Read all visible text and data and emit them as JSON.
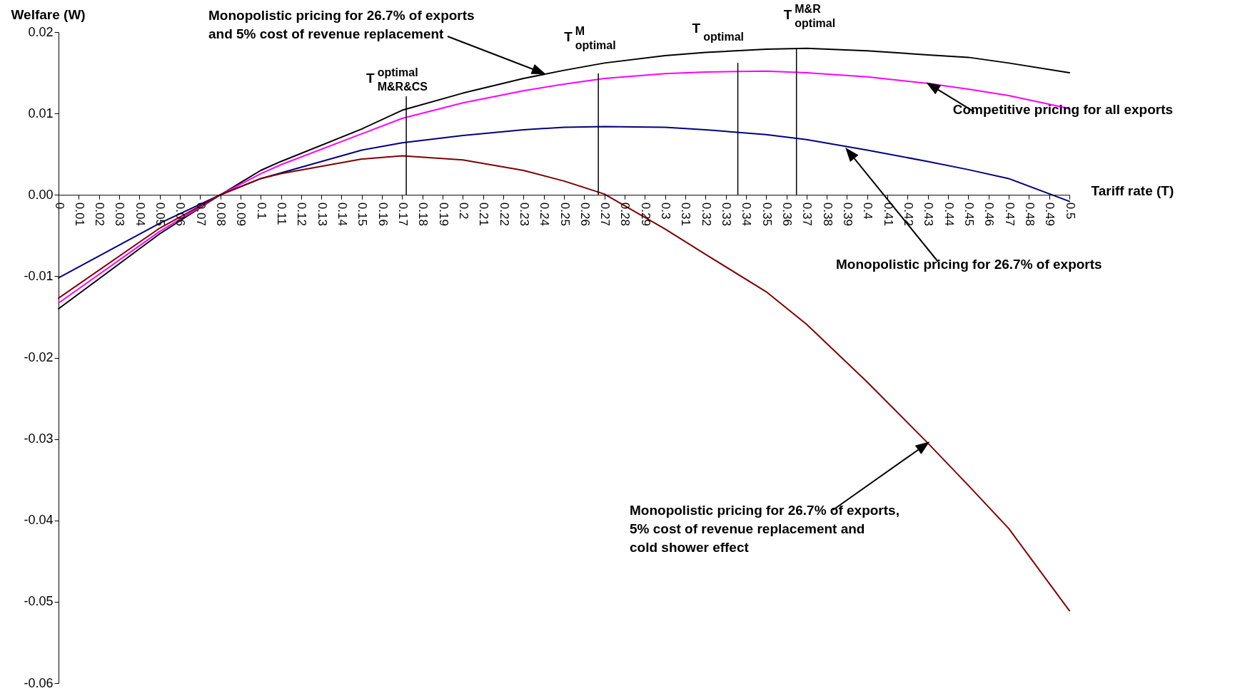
{
  "chart_data": {
    "type": "line",
    "xlabel": "Tariff rate (T)",
    "ylabel": "Welfare (W)",
    "x": [
      0,
      0.05,
      0.08,
      0.1,
      0.11,
      0.15,
      0.17,
      0.2,
      0.23,
      0.25,
      0.27,
      0.3,
      0.32,
      0.35,
      0.37,
      0.4,
      0.43,
      0.45,
      0.47,
      0.5
    ],
    "series": [
      {
        "color": "#000000",
        "values": [
          -0.014,
          -0.0048,
          0,
          0.003,
          0.0041,
          0.0081,
          0.0104,
          0.0125,
          0.0143,
          0.0153,
          0.0162,
          0.0171,
          0.0175,
          0.0179,
          0.018,
          0.0177,
          0.0172,
          0.0169,
          0.0162,
          0.015
        ]
      },
      {
        "color": "#ff00ff",
        "values": [
          -0.0133,
          -0.0045,
          0,
          0.0026,
          0.0037,
          0.0075,
          0.0094,
          0.0113,
          0.0128,
          0.0136,
          0.0143,
          0.0149,
          0.0151,
          0.0152,
          0.015,
          0.0145,
          0.0137,
          0.013,
          0.0122,
          0.0106
        ]
      },
      {
        "color": "#000080",
        "values": [
          -0.0102,
          -0.0035,
          0,
          0.002,
          0.0027,
          0.0055,
          0.0064,
          0.0073,
          0.008,
          0.0083,
          0.0084,
          0.0083,
          0.008,
          0.0074,
          0.0068,
          0.0055,
          0.0041,
          0.0031,
          0.002,
          -0.0008
        ]
      },
      {
        "color": "#800000",
        "values": [
          -0.0127,
          -0.0041,
          0,
          0.002,
          0.0026,
          0.0044,
          0.0048,
          0.0043,
          0.003,
          0.0017,
          0.0001,
          -0.0042,
          -0.0073,
          -0.0119,
          -0.0159,
          -0.023,
          -0.0305,
          -0.0357,
          -0.041,
          -0.0511
        ]
      }
    ],
    "xlim": [
      0,
      0.5
    ],
    "xticks": [
      0,
      0.01,
      0.02,
      0.03,
      0.04,
      0.05,
      0.06,
      0.07,
      0.08,
      0.09,
      0.1,
      0.11,
      0.12,
      0.13,
      0.14,
      0.15,
      0.16,
      0.17,
      0.18,
      0.19,
      0.2,
      0.21,
      0.22,
      0.23,
      0.24,
      0.25,
      0.26,
      0.27,
      0.28,
      0.29,
      0.3,
      0.31,
      0.32,
      0.33,
      0.34,
      0.35,
      0.36,
      0.37,
      0.38,
      0.39,
      0.4,
      0.41,
      0.42,
      0.43,
      0.44,
      0.45,
      0.46,
      0.47,
      0.48,
      0.49,
      0.5
    ],
    "ylim": [
      -0.06,
      0.02
    ],
    "yticks": [
      0.02,
      0.01,
      {
        "value": 0,
        "label": "0.00"
      },
      -0.01,
      -0.02,
      -0.03,
      -0.04,
      -0.05,
      -0.06
    ],
    "ref_lines": [
      {
        "axis": "x",
        "value": 0.172,
        "label": "T$^{optimal}$$_{M&R&CS}$"
      },
      {
        "axis": "x",
        "value": 0.267,
        "label": "T$^{M}$$_{optimal}$"
      },
      {
        "axis": "x",
        "value": 0.336,
        "label": "T$_{optimal}$"
      },
      {
        "axis": "x",
        "value": 0.365,
        "label": "T$^{M&R}$$_{optimal}$"
      }
    ],
    "annotations": [
      "Monopolistic pricing for 26.7% of exports\nand 5% cost of revenue replacement",
      {
        "text": "Competitive pricing for all exports",
        "x": 0.43,
        "y": 0.0137
      },
      "Monopolistic pricing for 26.7% of exports",
      "Monopolistic pricing for 26.7% of exports,\n5% cost of revenue replacement and\ncold shower effect"
    ]
  }
}
